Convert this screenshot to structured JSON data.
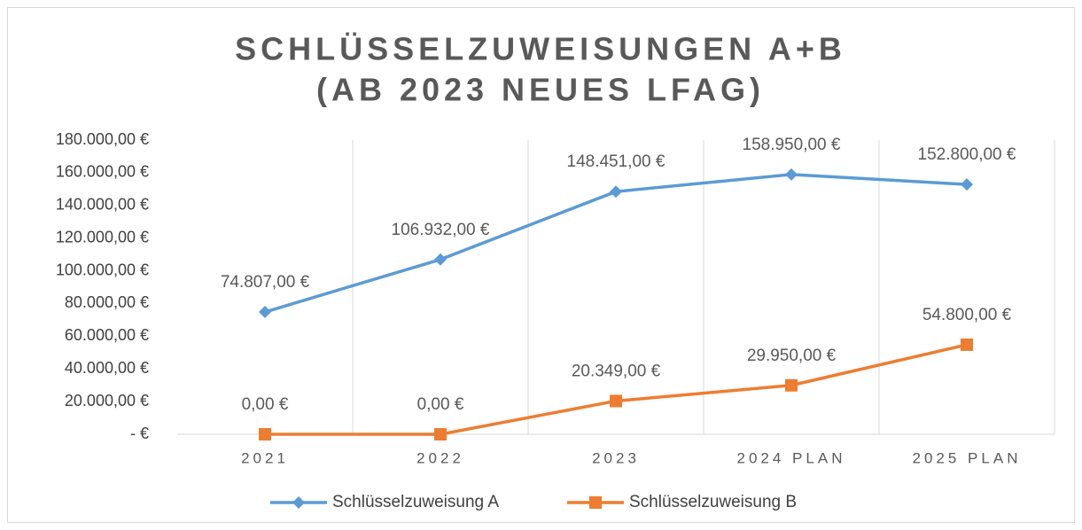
{
  "chart_data": {
    "type": "line",
    "title": [
      "SCHLÜSSELZUWEISUNGEN A+B",
      "(AB 2023 NEUES LFAG)"
    ],
    "categories": [
      "2021",
      "2022",
      "2023",
      "2024 PLAN",
      "2025 PLAN"
    ],
    "series": [
      {
        "name": "Schlüsselzuweisung A",
        "color": "#5b9bd5",
        "marker": "diamond",
        "values": [
          74807,
          106932,
          148451,
          158950,
          152800
        ],
        "value_labels": [
          "74.807,00 €",
          "106.932,00 €",
          "148.451,00 €",
          "158.950,00 €",
          "152.800,00 €"
        ]
      },
      {
        "name": "Schlüsselzuweisung B",
        "color": "#ed7d31",
        "marker": "square",
        "values": [
          0,
          0,
          20349,
          29950,
          54800
        ],
        "value_labels": [
          "0,00 €",
          "0,00 €",
          "20.349,00 €",
          "29.950,00 €",
          "54.800,00 €"
        ]
      }
    ],
    "ylim": [
      0,
      180000
    ],
    "yticks": [
      {
        "value": 0,
        "label": "-  €"
      },
      {
        "value": 20000,
        "label": "20.000,00 €"
      },
      {
        "value": 40000,
        "label": "40.000,00 €"
      },
      {
        "value": 60000,
        "label": "60.000,00 €"
      },
      {
        "value": 80000,
        "label": "80.000,00 €"
      },
      {
        "value": 100000,
        "label": "100.000,00 €"
      },
      {
        "value": 120000,
        "label": "120.000,00 €"
      },
      {
        "value": 140000,
        "label": "140.000,00 €"
      },
      {
        "value": 160000,
        "label": "160.000,00 €"
      },
      {
        "value": 180000,
        "label": "180.000,00 €"
      }
    ],
    "legend": "bottom"
  }
}
